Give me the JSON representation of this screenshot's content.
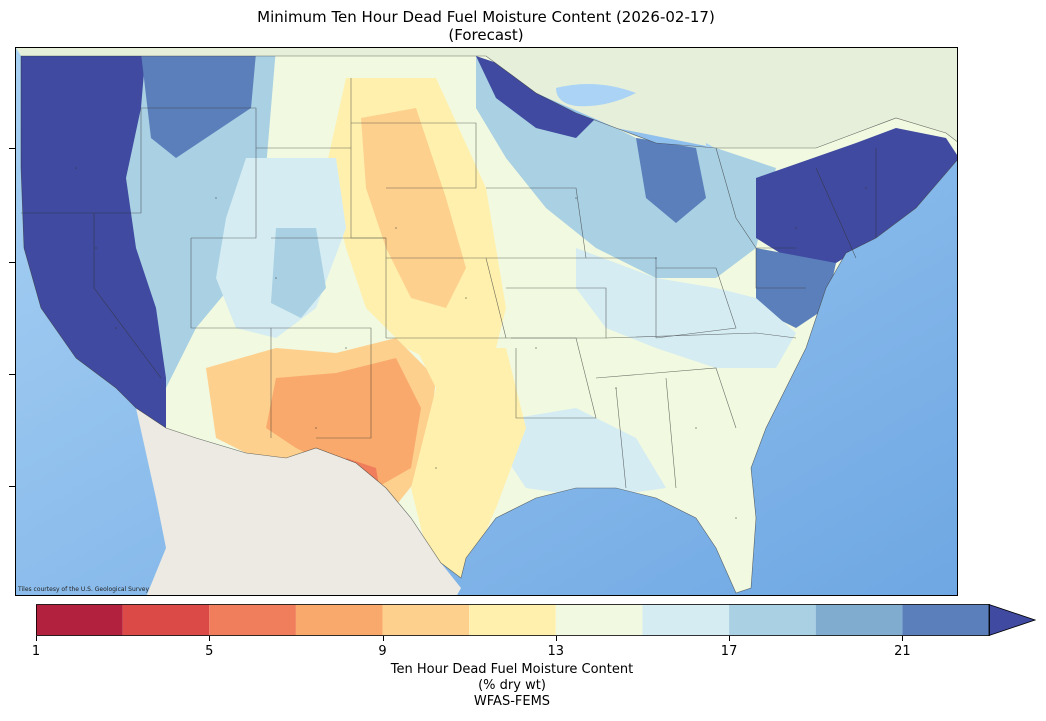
{
  "title_line1": "Minimum Ten Hour Dead Fuel Moisture Content (2026-02-17)",
  "title_line2": "(Forecast)",
  "map_credit": "Tiles courtesy of the U.S. Geological Survey",
  "colorbar": {
    "tick_labels": [
      "1",
      "5",
      "9",
      "13",
      "17",
      "21"
    ],
    "tick_values": [
      1,
      5,
      9,
      13,
      17,
      21
    ],
    "boundaries": [
      1,
      3,
      5,
      7,
      9,
      11,
      13,
      15,
      17,
      19,
      21,
      23
    ],
    "colors": [
      "#b2223f",
      "#db4a47",
      "#f07d5b",
      "#f9a96b",
      "#fdd08e",
      "#fff0ae",
      "#f1f9e0",
      "#d4ecf2",
      "#a9d0e3",
      "#80adcf",
      "#5b7fbb"
    ],
    "extend_color": "#3f4aa0",
    "label_line1": "Ten Hour Dead Fuel Moisture Content",
    "label_line2": "(% dry wt)",
    "label_line3": "WFAS-FEMS"
  },
  "colors": {
    "ocean": "#8fc1ee",
    "land_mexico": "#eceae2",
    "land_canada": "#e6efd9",
    "lakes": "#aad3f5"
  }
}
